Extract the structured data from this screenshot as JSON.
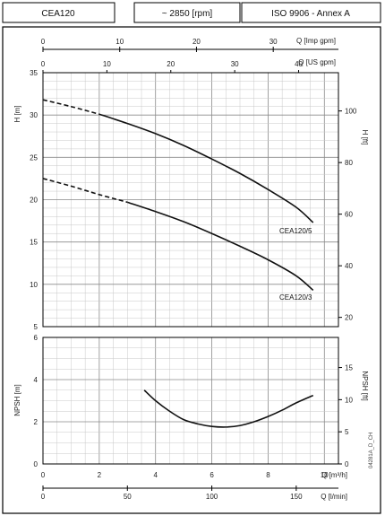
{
  "header": {
    "model": "CEA120",
    "speed": "~ 2850 [rpm]",
    "standard": "ISO 9906 - Annex A"
  },
  "axes": {
    "q_imp_gpm": {
      "label": "Q [Imp gpm]",
      "ticks": [
        0,
        10,
        20,
        30
      ]
    },
    "q_us_gpm": {
      "label": "Q [US gpm]",
      "ticks": [
        0,
        10,
        20,
        30,
        40
      ]
    },
    "h_m": {
      "label": "H [m]",
      "ticks": [
        5,
        10,
        15,
        20,
        25,
        30,
        35
      ]
    },
    "h_ft": {
      "label": "H [ft]",
      "ticks": [
        20,
        40,
        60,
        80,
        100
      ]
    },
    "npsh_m": {
      "label": "NPSH [m]",
      "ticks": [
        0,
        2,
        4,
        6
      ]
    },
    "npsh_ft": {
      "label": "NPSH [ft]",
      "ticks": [
        0,
        5,
        10,
        15
      ]
    },
    "q_m3h": {
      "label": "Q [m³/h]",
      "ticks": [
        0,
        2,
        4,
        6,
        8,
        10
      ]
    },
    "q_lmin": {
      "label": "Q [l/min]",
      "ticks": [
        0,
        50,
        100,
        150
      ]
    }
  },
  "code": "04281A_D_CH",
  "chart_data": [
    {
      "type": "line",
      "xlabel": "Q [m³/h]",
      "ylabel": "H [m]",
      "xlim": [
        0,
        10.5
      ],
      "ylim": [
        5,
        35
      ],
      "grid": true,
      "series": [
        {
          "name": "CEA120/5",
          "dashed_segment": [
            {
              "x": 0,
              "y": 31.8
            },
            {
              "x": 1,
              "y": 31.0
            },
            {
              "x": 2,
              "y": 30.1
            }
          ],
          "values": [
            {
              "x": 2,
              "y": 30.1
            },
            {
              "x": 3,
              "y": 29.0
            },
            {
              "x": 4,
              "y": 27.8
            },
            {
              "x": 5,
              "y": 26.4
            },
            {
              "x": 6,
              "y": 24.8
            },
            {
              "x": 7,
              "y": 23.1
            },
            {
              "x": 8,
              "y": 21.2
            },
            {
              "x": 9,
              "y": 19.1
            },
            {
              "x": 9.6,
              "y": 17.3
            }
          ]
        },
        {
          "name": "CEA120/3",
          "dashed_segment": [
            {
              "x": 0,
              "y": 22.5
            },
            {
              "x": 1,
              "y": 21.6
            },
            {
              "x": 2,
              "y": 20.6
            },
            {
              "x": 3,
              "y": 19.7
            }
          ],
          "values": [
            {
              "x": 3,
              "y": 19.7
            },
            {
              "x": 4,
              "y": 18.6
            },
            {
              "x": 5,
              "y": 17.4
            },
            {
              "x": 6,
              "y": 16.0
            },
            {
              "x": 7,
              "y": 14.5
            },
            {
              "x": 8,
              "y": 12.9
            },
            {
              "x": 9,
              "y": 11.0
            },
            {
              "x": 9.6,
              "y": 9.3
            }
          ]
        }
      ]
    },
    {
      "type": "line",
      "xlabel": "Q [m³/h]",
      "ylabel": "NPSH [m]",
      "xlim": [
        0,
        10.5
      ],
      "ylim": [
        0,
        6
      ],
      "grid": true,
      "series": [
        {
          "values": [
            {
              "x": 3.6,
              "y": 3.5
            },
            {
              "x": 4,
              "y": 3.0
            },
            {
              "x": 4.5,
              "y": 2.5
            },
            {
              "x": 5,
              "y": 2.1
            },
            {
              "x": 5.5,
              "y": 1.9
            },
            {
              "x": 6,
              "y": 1.78
            },
            {
              "x": 6.5,
              "y": 1.75
            },
            {
              "x": 7,
              "y": 1.82
            },
            {
              "x": 7.5,
              "y": 2.0
            },
            {
              "x": 8,
              "y": 2.25
            },
            {
              "x": 8.5,
              "y": 2.55
            },
            {
              "x": 9,
              "y": 2.9
            },
            {
              "x": 9.6,
              "y": 3.25
            }
          ]
        }
      ]
    }
  ]
}
